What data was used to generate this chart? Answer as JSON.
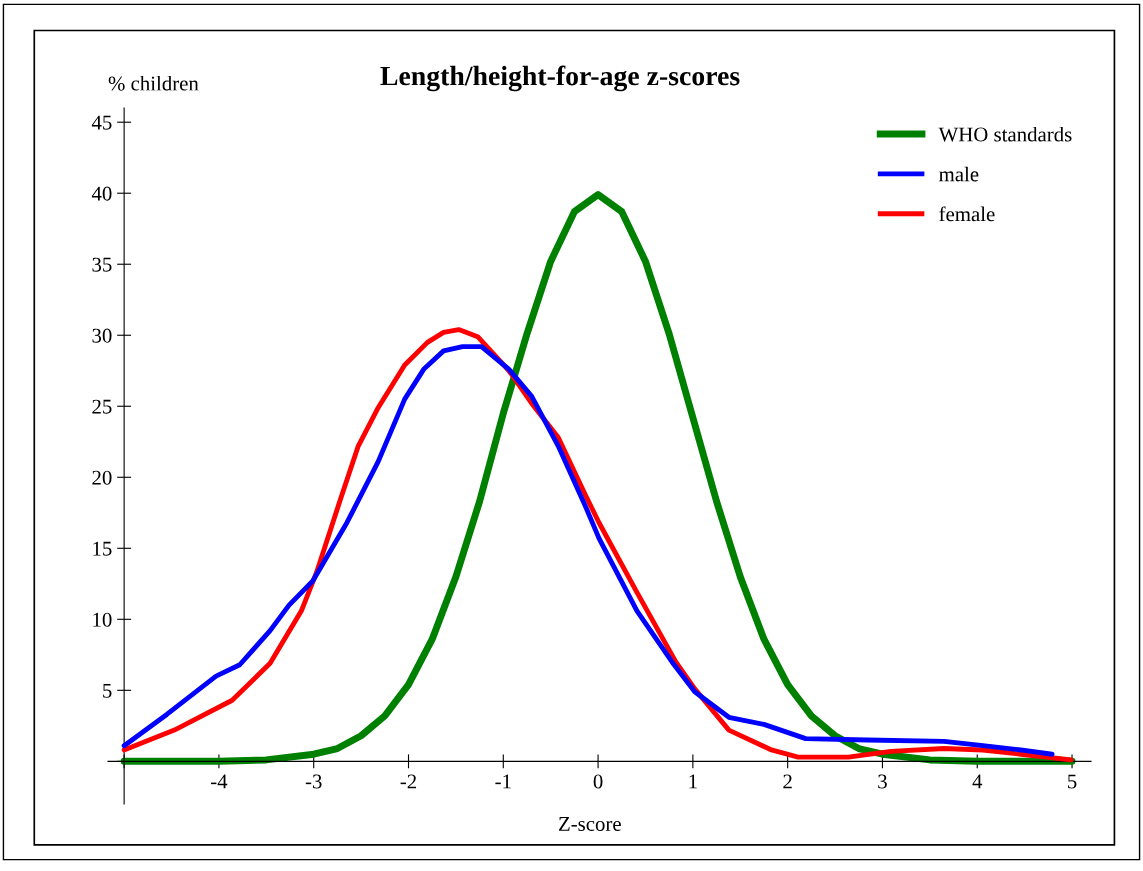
{
  "chart_data": {
    "type": "line",
    "title": "Length/height-for-age z-scores",
    "xlabel": "Z-score",
    "ylabel": "% children",
    "xlim": [
      -5.17,
      5.2
    ],
    "xticks": [
      {
        "value": -5,
        "label": null
      },
      -4,
      -3,
      -2,
      -1,
      0,
      1,
      2,
      3,
      4,
      5
    ],
    "ylim": [
      -3,
      46
    ],
    "yticks": [
      {
        "value": 0,
        "label": null
      },
      5,
      10,
      15,
      20,
      25,
      30,
      35,
      40,
      45
    ],
    "grid": false,
    "legend": "top right",
    "marker": "none",
    "line_style": "solid",
    "series": [
      {
        "name": "WHO standards",
        "color": "#008000",
        "x": [
          -5,
          -4,
          -3.5,
          -3,
          -2.75,
          -2.5,
          -2.25,
          -2,
          -1.75,
          -1.5,
          -1.25,
          -1,
          -0.75,
          -0.5,
          -0.25,
          0,
          0.25,
          0.5,
          0.75,
          1,
          1.25,
          1.5,
          1.75,
          2,
          2.25,
          2.5,
          2.75,
          3,
          3.5,
          4,
          5
        ],
        "values": [
          0,
          0,
          0.1,
          0.5,
          0.9,
          1.8,
          3.2,
          5.4,
          8.6,
          13,
          18.3,
          24.5,
          30.1,
          35.2,
          38.7,
          39.9,
          38.7,
          35.2,
          30.1,
          24.2,
          18.3,
          13,
          8.6,
          5.4,
          3.2,
          1.8,
          0.9,
          0.5,
          0.1,
          0,
          0
        ]
      },
      {
        "name": "male",
        "color": "#0000ff",
        "x": [
          -5,
          -4.55,
          -4.03,
          -3.78,
          -3.46,
          -3.26,
          -3.01,
          -2.65,
          -2.32,
          -2.04,
          -1.84,
          -1.63,
          -1.43,
          -1.23,
          -0.94,
          -0.7,
          -0.42,
          -0.13,
          0.01,
          0.41,
          0.78,
          1.02,
          1.38,
          1.75,
          2.19,
          2.84,
          3.65,
          4.06,
          4.46,
          4.79
        ],
        "values": [
          1.1,
          3.3,
          6.0,
          6.8,
          9.2,
          11.0,
          12.7,
          16.8,
          21.1,
          25.5,
          27.6,
          28.9,
          29.2,
          29.2,
          27.6,
          25.7,
          22.2,
          17.9,
          15.7,
          10.6,
          7.0,
          4.9,
          3.1,
          2.6,
          1.6,
          1.5,
          1.4,
          1.1,
          0.8,
          0.5
        ]
      },
      {
        "name": "female",
        "color": "#ff0000",
        "x": [
          -5,
          -4.47,
          -3.86,
          -3.46,
          -3.13,
          -2.97,
          -2.73,
          -2.53,
          -2.32,
          -2.04,
          -1.8,
          -1.63,
          -1.47,
          -1.27,
          -0.94,
          -0.7,
          -0.42,
          -0.13,
          0.01,
          0.41,
          0.82,
          1.02,
          1.38,
          1.83,
          2.11,
          2.64,
          3.09,
          3.65,
          4.06,
          4.46,
          4.99
        ],
        "values": [
          0.8,
          2.2,
          4.3,
          6.9,
          10.6,
          13.3,
          18.2,
          22.2,
          24.9,
          27.9,
          29.5,
          30.2,
          30.4,
          29.9,
          27.5,
          25.2,
          22.8,
          18.7,
          16.8,
          11.9,
          7.0,
          5.1,
          2.2,
          0.8,
          0.3,
          0.3,
          0.7,
          0.9,
          0.8,
          0.5,
          0.1
        ]
      }
    ]
  }
}
